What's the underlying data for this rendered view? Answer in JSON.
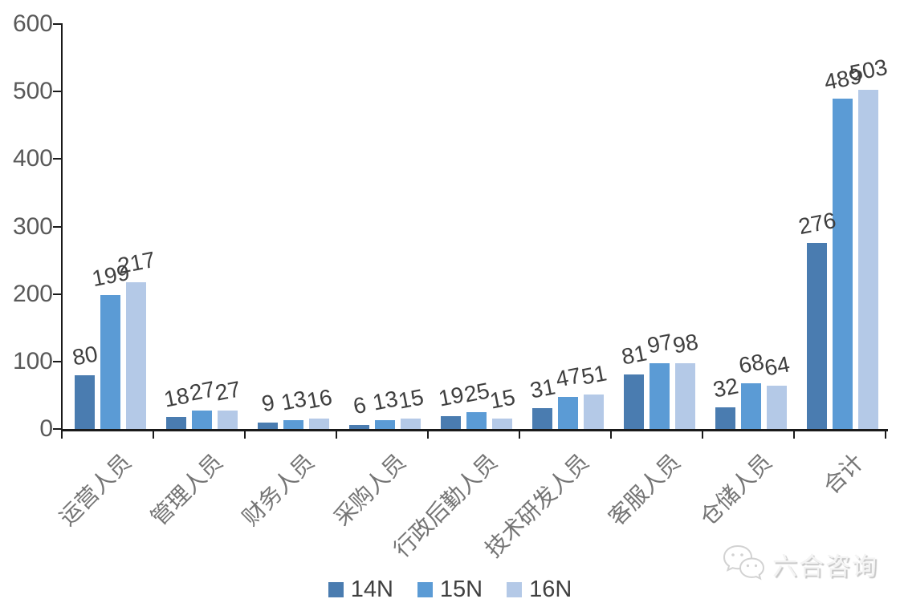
{
  "chart_data": {
    "type": "bar",
    "title": "",
    "xlabel": "",
    "ylabel": "",
    "categories": [
      "运营人员",
      "管理人员",
      "财务人员",
      "采购人员",
      "行政后勤人员",
      "技术研发人员",
      "客服人员",
      "仓储人员",
      "合计"
    ],
    "series": [
      {
        "name": "14N",
        "color": "#4a7cb0",
        "values": [
          80,
          18,
          9,
          6,
          19,
          31,
          81,
          32,
          276
        ]
      },
      {
        "name": "15N",
        "color": "#5b9bd5",
        "values": [
          199,
          27,
          13,
          13,
          25,
          47,
          97,
          68,
          489
        ]
      },
      {
        "name": "16N",
        "color": "#b4c9e7",
        "values": [
          217,
          27,
          16,
          15,
          15,
          51,
          98,
          64,
          503
        ]
      }
    ],
    "ylim": [
      0,
      600
    ],
    "yticks": [
      0,
      100,
      200,
      300,
      400,
      500,
      600
    ],
    "grid": false,
    "data_labels": true,
    "legend_position": "bottom"
  },
  "legend": {
    "items": [
      {
        "label": "14N",
        "color": "#4a7cb0"
      },
      {
        "label": "15N",
        "color": "#5b9bd5"
      },
      {
        "label": "16N",
        "color": "#b4c9e7"
      }
    ]
  },
  "watermark": {
    "text": "六合咨询",
    "icon": "wechat-icon"
  },
  "colors": {
    "axis": "#1a1a1a",
    "tick_label": "#595959",
    "data_label": "#3f3f3f",
    "category_label": "#757575",
    "legend_label": "#404040",
    "background": "#ffffff"
  }
}
